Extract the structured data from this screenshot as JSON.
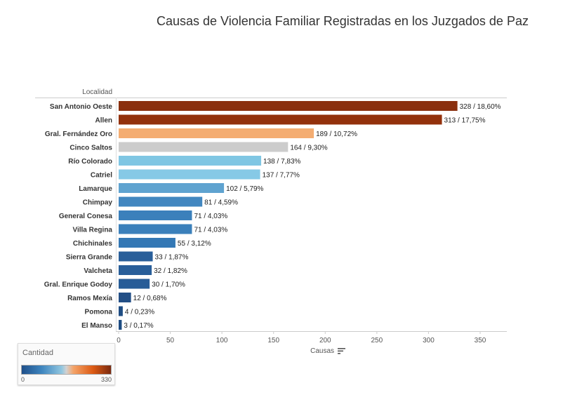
{
  "chart_data": {
    "type": "bar",
    "orientation": "horizontal",
    "title": "Causas de Violencia Familiar Registradas en los Juzgados de Paz",
    "row_header": "Localidad",
    "xlabel": "Causas",
    "xlim": [
      0,
      350
    ],
    "xticks": [
      0,
      50,
      100,
      150,
      200,
      250,
      300,
      350
    ],
    "categories": [
      "San Antonio Oeste",
      "Allen",
      "Gral. Fernández Oro",
      "Cinco Saltos",
      "Río Colorado",
      "Catriel",
      "Lamarque",
      "Chimpay",
      "General Conesa",
      "Villa Regina",
      "Chichinales",
      "Sierra Grande",
      "Valcheta",
      "Gral. Enrique Godoy",
      "Ramos Mexía",
      "Pomona",
      "El Manso"
    ],
    "values": [
      328,
      313,
      189,
      164,
      138,
      137,
      102,
      81,
      71,
      71,
      55,
      33,
      32,
      30,
      12,
      4,
      3
    ],
    "labels": [
      "328 / 18,60%",
      "313 / 17,75%",
      "189 / 10,72%",
      "164 / 9,30%",
      "138 / 7,83%",
      "137 / 7,77%",
      "102 / 5,79%",
      "81 / 4,59%",
      "71 / 4,03%",
      "71 / 4,03%",
      "55 / 3,12%",
      "33 / 1,87%",
      "32 / 1,82%",
      "30 / 1,70%",
      "12 / 0,68%",
      "4 / 0,23%",
      "3 / 0,17%"
    ],
    "colors": [
      "#8a2f0e",
      "#93310c",
      "#f4ad72",
      "#cccccc",
      "#7fc6e3",
      "#86c9e6",
      "#5fa3d0",
      "#4287c0",
      "#3b80bb",
      "#3b80bb",
      "#3478b5",
      "#295f9a",
      "#285e99",
      "#275c97",
      "#234f86",
      "#1f4d83",
      "#1e4c82"
    ],
    "grid": false,
    "legend": {
      "title": "Cantidad",
      "min": "0",
      "max": "330",
      "placement": "bottom-left"
    }
  }
}
